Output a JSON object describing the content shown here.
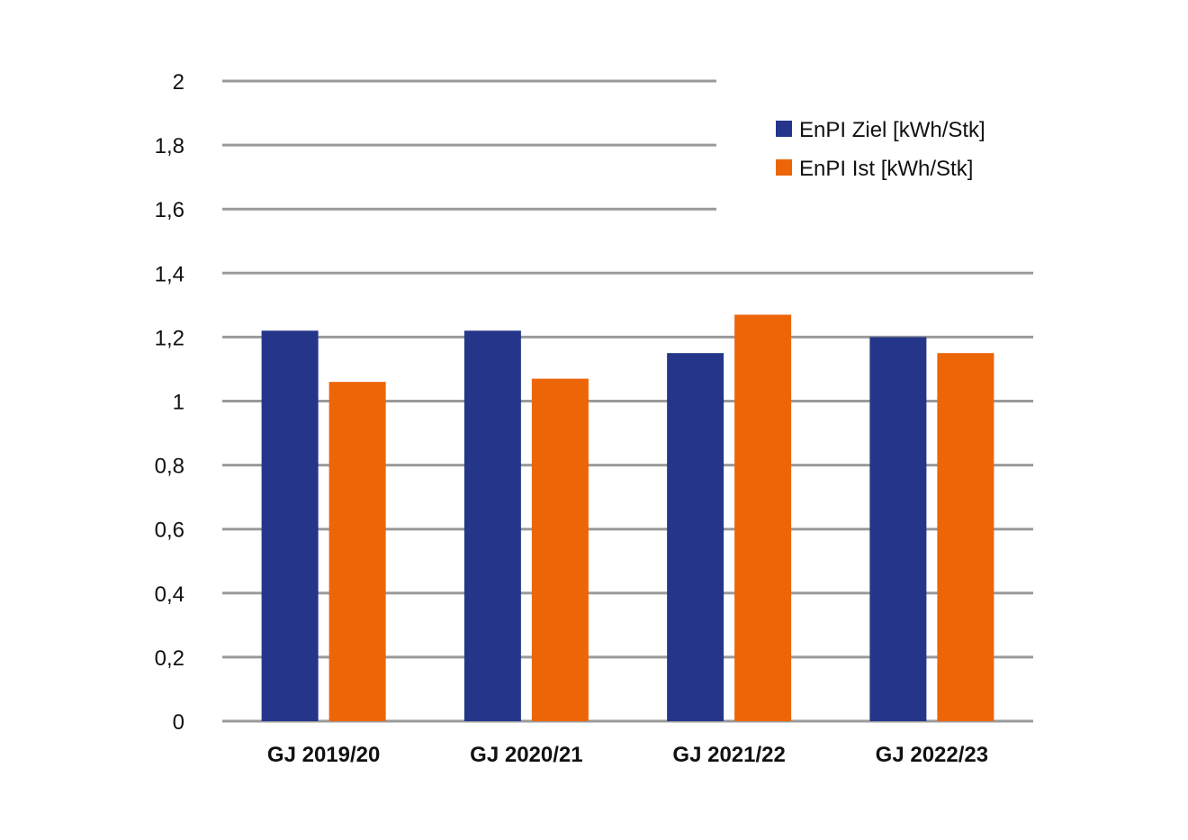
{
  "chart_data": {
    "type": "bar",
    "title": "",
    "xlabel": "",
    "ylabel": "",
    "categories": [
      "GJ 2019/20",
      "GJ 2020/21",
      "GJ 2021/22",
      "GJ 2022/23"
    ],
    "series": [
      {
        "name": "EnPI Ziel [kWh/Stk]",
        "color": "#25368A",
        "values": [
          1.22,
          1.22,
          1.15,
          1.2
        ]
      },
      {
        "name": "EnPI Ist [kWh/Stk]",
        "color": "#EC6608",
        "values": [
          1.06,
          1.07,
          1.27,
          1.15
        ]
      }
    ],
    "ylim": [
      0,
      2
    ],
    "yticks": [
      0,
      0.2,
      0.4,
      0.6,
      0.8,
      1,
      1.2,
      1.4,
      1.6,
      1.8,
      2
    ],
    "ytick_labels": [
      "0",
      "0,2",
      "0,4",
      "0,6",
      "0,8",
      "1",
      "1,2",
      "1,4",
      "1,6",
      "1,8",
      "2"
    ],
    "grid": true,
    "gridline_color": "#9A9A9A",
    "legend_position": "top-right"
  }
}
